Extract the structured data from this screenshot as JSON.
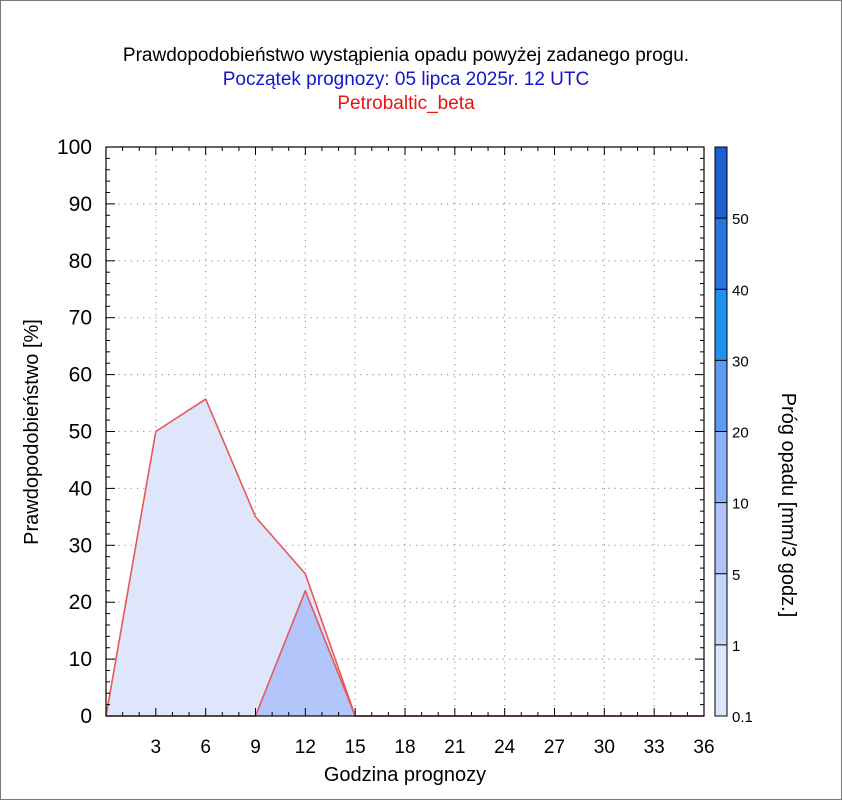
{
  "chart_data": {
    "type": "area",
    "title": "Prawdopodobieństwo wystąpienia opadu powyżej zadanego progu.",
    "subtitle": "Początek prognozy: 05 lipca 2025r. 12 UTC",
    "subtitle2": "Petrobaltic_beta",
    "xlabel": "Godzina prognozy",
    "ylabel": "Prawdopodobieństwo [%]",
    "colorbar_label": "Próg opadu [mm/3 godz.]",
    "xlim": [
      0,
      36
    ],
    "ylim": [
      0,
      100
    ],
    "x_ticks": [
      3,
      6,
      9,
      12,
      15,
      18,
      21,
      24,
      27,
      30,
      33,
      36
    ],
    "y_ticks": [
      0,
      10,
      20,
      30,
      40,
      50,
      60,
      70,
      80,
      90,
      100
    ],
    "grid": true,
    "colorbar_ticks": [
      "0.1",
      "1",
      "5",
      "10",
      "20",
      "30",
      "40",
      "50"
    ],
    "colorbar_colors": [
      "#dde6fb",
      "#c7d4fb",
      "#b0c4fb",
      "#8db1f7",
      "#5f9af2",
      "#1f8ff0",
      "#2a74e0",
      "#1d5fd0",
      "#1648b8"
    ],
    "series": [
      {
        "threshold": "0.1",
        "color": "#dde6fb",
        "x": [
          0,
          3,
          6,
          9,
          12,
          15,
          18,
          21,
          24,
          27,
          30,
          33,
          36
        ],
        "values": [
          0,
          50,
          55.7,
          35,
          25,
          0,
          0,
          0,
          0,
          0,
          0,
          0,
          0
        ]
      },
      {
        "threshold": "1",
        "color": "#b3c6fb",
        "x": [
          0,
          3,
          6,
          9,
          12,
          15,
          18,
          21,
          24,
          27,
          30,
          33,
          36
        ],
        "values": [
          0,
          0,
          0,
          0,
          22,
          0,
          0,
          0,
          0,
          0,
          0,
          0,
          0
        ]
      }
    ]
  }
}
